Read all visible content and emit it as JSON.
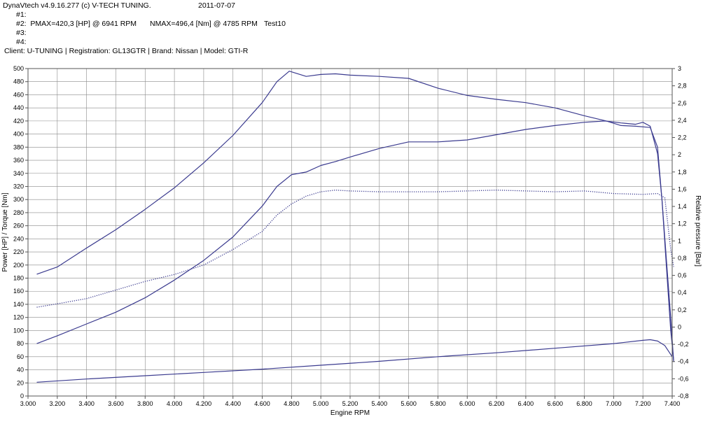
{
  "header": {
    "software": "DynaVtech v4.9.16.277 (c) V-TECH TUNING.",
    "date": "2011-07-07",
    "run1": "#1:",
    "run2_power": "#2:  PMAX=420,3 [HP] @ 6941 RPM",
    "run2_torque": "NMAX=496,4 [Nm] @ 4785 RPM",
    "run2_name": "Test10",
    "run3": "#3:",
    "run4": "#4:",
    "client_line": "Client: U-TUNING | Registration: GL13GTR | Brand: Nissan | Model: GTI-R"
  },
  "chart_data": {
    "type": "line",
    "xlabel": "Engine RPM",
    "ylabel": "Power [HP] / Torque [Nm]",
    "y2label": "Relative pressure [Bar]",
    "xlim": [
      3000,
      7400
    ],
    "ylim": [
      0,
      500
    ],
    "y2lim": [
      -0.8,
      3.0
    ],
    "grid": true,
    "x_ticks": [
      "3.000",
      "3.200",
      "3.400",
      "3.600",
      "3.800",
      "4.000",
      "4.200",
      "4.400",
      "4.600",
      "4.800",
      "5.000",
      "5.200",
      "5.400",
      "5.600",
      "5.800",
      "6.000",
      "6.200",
      "6.400",
      "6.600",
      "6.800",
      "7.000",
      "7.200",
      "7.400"
    ],
    "y_ticks": [
      "0",
      "20",
      "40",
      "60",
      "80",
      "100",
      "120",
      "140",
      "160",
      "180",
      "200",
      "220",
      "240",
      "260",
      "280",
      "300",
      "320",
      "340",
      "360",
      "380",
      "400",
      "420",
      "440",
      "460",
      "480",
      "500"
    ],
    "y2_ticks": [
      "-0,8",
      "-0,6",
      "-0,4",
      "-0,2",
      "0",
      "0,2",
      "0,4",
      "0,6",
      "0,8",
      "1",
      "1,2",
      "1,4",
      "1,6",
      "1,8",
      "2",
      "2,2",
      "2,4",
      "2,6",
      "2,8",
      "3"
    ],
    "series": [
      {
        "axis": "left",
        "style": "solid",
        "color": "#3b3b8f",
        "x": [
          3060,
          3200,
          3400,
          3600,
          3800,
          4000,
          4200,
          4400,
          4600,
          4700,
          4785,
          4900,
          5000,
          5100,
          5200,
          5400,
          5600,
          5800,
          6000,
          6200,
          6400,
          6600,
          6800,
          6950,
          7050,
          7150,
          7250,
          7300,
          7330,
          7360,
          7390,
          7410
        ],
        "values": [
          186,
          197,
          226,
          254,
          285,
          318,
          356,
          398,
          448,
          480,
          496,
          488,
          491,
          492,
          490,
          488,
          485,
          470,
          459,
          453,
          448,
          440,
          428,
          420,
          413,
          412,
          410,
          380,
          300,
          200,
          100,
          55
        ]
      },
      {
        "axis": "left",
        "style": "solid",
        "color": "#3b3b8f",
        "x": [
          3060,
          3200,
          3400,
          3600,
          3800,
          4000,
          4200,
          4400,
          4600,
          4700,
          4800,
          4900,
          5000,
          5100,
          5200,
          5400,
          5600,
          5800,
          6000,
          6200,
          6400,
          6600,
          6800,
          6941,
          7050,
          7150,
          7200,
          7250,
          7300,
          7330,
          7360,
          7390,
          7410
        ],
        "values": [
          80,
          92,
          110,
          128,
          150,
          177,
          207,
          243,
          290,
          320,
          338,
          342,
          352,
          358,
          365,
          378,
          388,
          388,
          391,
          399,
          407,
          413,
          418,
          420,
          417,
          415,
          418,
          412,
          370,
          300,
          210,
          120,
          52
        ]
      },
      {
        "axis": "right",
        "style": "dotted",
        "color": "#3b3b8f",
        "x": [
          3060,
          3200,
          3400,
          3600,
          3800,
          4000,
          4200,
          4400,
          4600,
          4700,
          4800,
          4900,
          5000,
          5100,
          5200,
          5400,
          5600,
          5800,
          6000,
          6200,
          6400,
          6600,
          6800,
          7000,
          7200,
          7300,
          7350,
          7390,
          7410
        ],
        "values": [
          0.23,
          0.27,
          0.33,
          0.43,
          0.53,
          0.61,
          0.72,
          0.9,
          1.11,
          1.3,
          1.43,
          1.52,
          1.57,
          1.59,
          1.58,
          1.57,
          1.57,
          1.57,
          1.58,
          1.59,
          1.58,
          1.57,
          1.58,
          1.55,
          1.54,
          1.55,
          1.5,
          0.9,
          0.7
        ]
      },
      {
        "axis": "left",
        "style": "solid",
        "color": "#3b3b8f",
        "x": [
          3060,
          3400,
          3800,
          4200,
          4600,
          5000,
          5400,
          5800,
          6200,
          6600,
          7000,
          7200,
          7250,
          7300,
          7350,
          7400
        ],
        "values": [
          21,
          26,
          31,
          36,
          41,
          47,
          53,
          60,
          66,
          73,
          80,
          85,
          86,
          84,
          77,
          60
        ]
      }
    ]
  }
}
